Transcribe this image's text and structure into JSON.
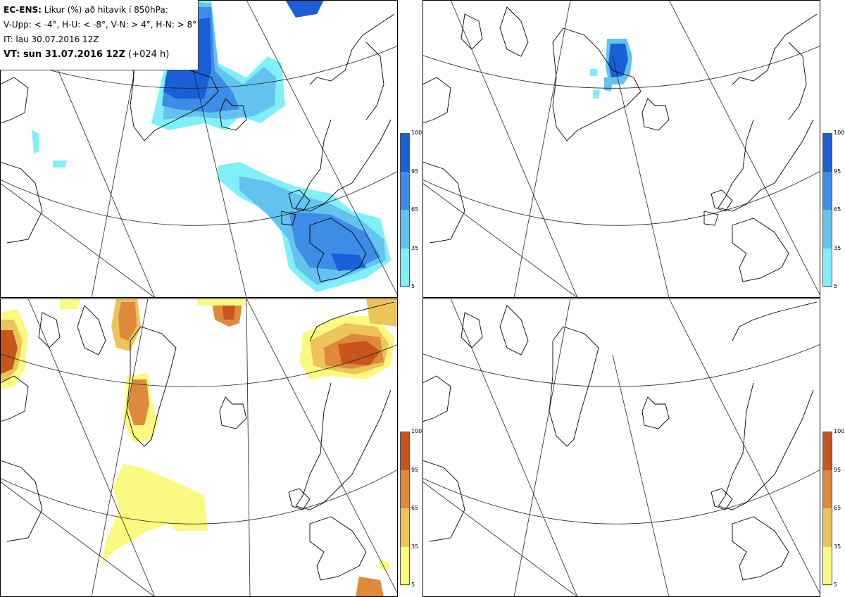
{
  "info": {
    "line1_bold": "EC-ENS:",
    "line1_rest": " Líkur (%) að hitavik í 850hPa:",
    "line2": "V-Upp: < -4°, H-U: < -8°, V-N: > 4°, H-N: > 8°",
    "line3": "IT: lau 30.07.2016 12Z",
    "line4_bold": "VT: sun 31.07.2016 12Z",
    "line4_rest": " (+024 h)"
  },
  "panels": [
    {
      "id": "top-left",
      "quantity": "V-Upp",
      "colorbar": "blue"
    },
    {
      "id": "top-right",
      "quantity": "H-U",
      "colorbar": "blue"
    },
    {
      "id": "bottom-left",
      "quantity": "V-N",
      "colorbar": "orange"
    },
    {
      "id": "bottom-right",
      "quantity": "H-N",
      "colorbar": "orange"
    }
  ],
  "colorbars": {
    "ticks": [
      "100",
      "95",
      "65",
      "35",
      "5"
    ],
    "blue": [
      "#1a5fd6",
      "#3d8ce6",
      "#62c3f0",
      "#7ff0fa"
    ],
    "orange": [
      "#c8551e",
      "#de8a3a",
      "#ecc45a",
      "#fbfa80"
    ]
  },
  "colors": {
    "coast": "#000000",
    "grid": "#000000",
    "blue_levels": [
      "#7ff0fa",
      "#62c3f0",
      "#3d8ce6",
      "#1a5fd6"
    ],
    "orange_levels": [
      "#fbfa80",
      "#ecc45a",
      "#de8a3a",
      "#c8551e"
    ]
  }
}
